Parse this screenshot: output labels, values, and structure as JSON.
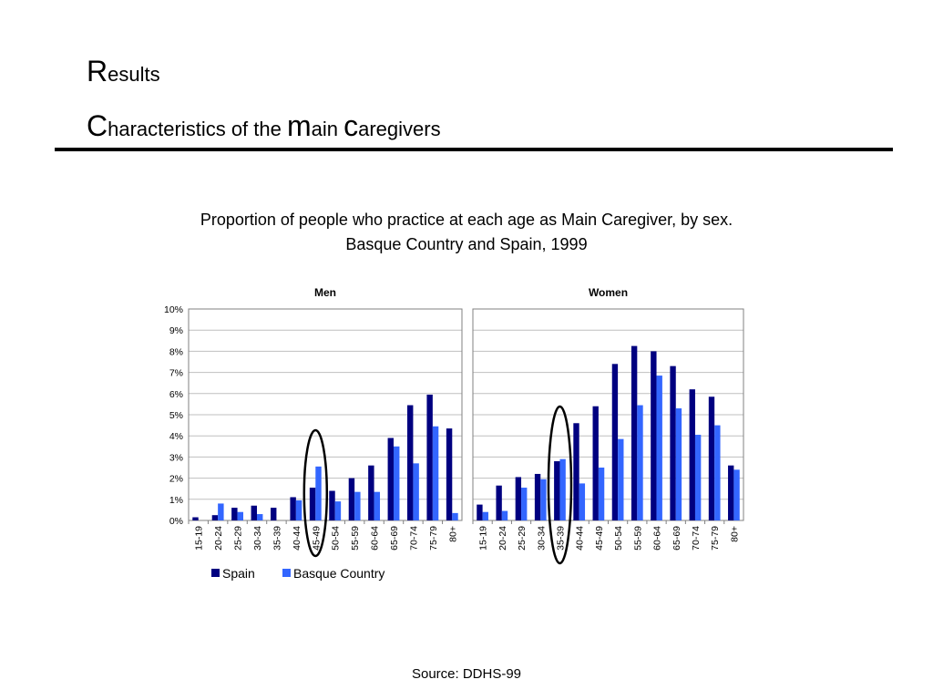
{
  "slide": {
    "title_line1_initial": "R",
    "title_line1_rest": "esults",
    "title_line2_parts": [
      "C",
      "haracteristics of the ",
      "m",
      "ain ",
      "c",
      "aregivers"
    ],
    "subtitle_line1": "Proportion of people who practice at each age as Main Caregiver, by sex.",
    "subtitle_line2": "Basque Country and Spain, 1999",
    "source": "Source: DDHS-99"
  },
  "chart_data": [
    {
      "type": "bar",
      "title": "Men",
      "categories": [
        "15-19",
        "20-24",
        "25-29",
        "30-34",
        "35-39",
        "40-44",
        "45-49",
        "50-54",
        "55-59",
        "60-64",
        "65-69",
        "70-74",
        "75-79",
        "80+"
      ],
      "ylim": [
        0,
        10
      ],
      "yticks": [
        "0%",
        "1%",
        "2%",
        "3%",
        "4%",
        "5%",
        "6%",
        "7%",
        "8%",
        "9%",
        "10%"
      ],
      "grid": true,
      "series": [
        {
          "name": "Spain",
          "color": "#000080",
          "values": [
            0.15,
            0.25,
            0.6,
            0.7,
            0.6,
            1.1,
            1.55,
            1.4,
            2.0,
            2.6,
            3.9,
            5.45,
            5.95,
            4.35
          ]
        },
        {
          "name": "Basque Country",
          "color": "#3366FF",
          "values": [
            0.0,
            0.8,
            0.4,
            0.3,
            0.0,
            0.95,
            2.55,
            0.9,
            1.35,
            1.35,
            3.5,
            2.7,
            4.45,
            0.35
          ]
        }
      ],
      "annotation": {
        "shape": "ellipse",
        "around_category": "45-49"
      }
    },
    {
      "type": "bar",
      "title": "Women",
      "categories": [
        "15-19",
        "20-24",
        "25-29",
        "30-34",
        "35-39",
        "40-44",
        "45-49",
        "50-54",
        "55-59",
        "60-64",
        "65-69",
        "70-74",
        "75-79",
        "80+"
      ],
      "ylim": [
        0,
        10
      ],
      "grid": true,
      "series": [
        {
          "name": "Spain",
          "color": "#000080",
          "values": [
            0.75,
            1.65,
            2.05,
            2.2,
            2.8,
            4.6,
            5.4,
            7.4,
            8.25,
            8.0,
            7.3,
            6.2,
            5.85,
            2.6
          ]
        },
        {
          "name": "Basque Country",
          "color": "#3366FF",
          "values": [
            0.4,
            0.45,
            1.55,
            1.95,
            2.9,
            1.75,
            2.5,
            3.85,
            5.45,
            6.85,
            5.3,
            4.05,
            4.5,
            2.4
          ]
        }
      ],
      "annotation": {
        "shape": "ellipse",
        "around_category": "35-39"
      }
    }
  ],
  "legend": [
    "Spain",
    "Basque Country"
  ]
}
